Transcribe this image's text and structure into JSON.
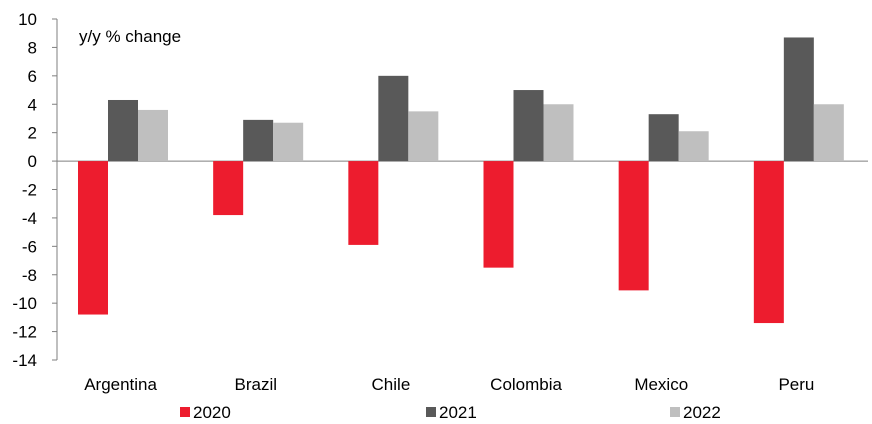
{
  "chart_data": {
    "type": "bar",
    "ylabel": "y/y % change",
    "ylim": [
      -14,
      10
    ],
    "yticks": [
      "10",
      "8",
      "6",
      "4",
      "2",
      "0",
      "-2",
      "-4",
      "-6",
      "-8",
      "-10",
      "-12",
      "-14"
    ],
    "categories": [
      "Argentina",
      "Brazil",
      "Chile",
      "Colombia",
      "Mexico",
      "Peru"
    ],
    "series": [
      {
        "name": "2020",
        "color": "#ed1c2e",
        "values": [
          -10.8,
          -3.8,
          -5.9,
          -7.5,
          -9.1,
          -11.4
        ]
      },
      {
        "name": "2021",
        "color": "#595959",
        "values": [
          4.3,
          2.9,
          6.0,
          5.0,
          3.3,
          8.7
        ]
      },
      {
        "name": "2022",
        "color": "#bfbfbf",
        "values": [
          3.6,
          2.7,
          3.5,
          4.0,
          2.1,
          4.0
        ]
      }
    ],
    "grid": false,
    "legend": "bottom"
  }
}
